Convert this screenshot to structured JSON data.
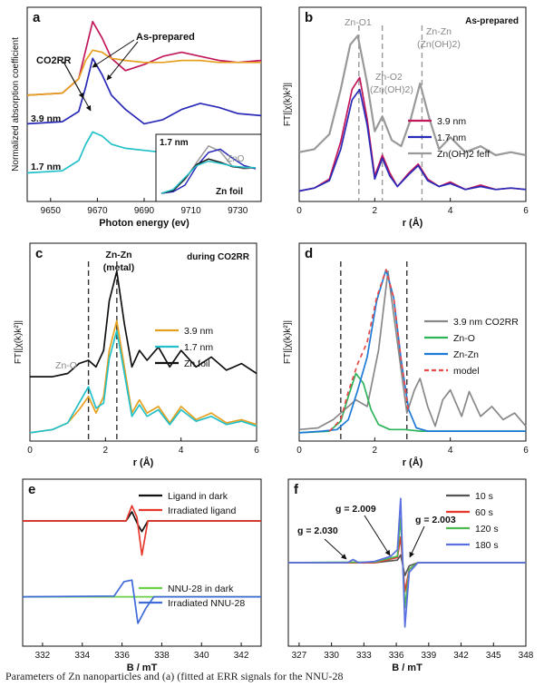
{
  "header_text": "",
  "caption": "Parameters of Zn nanoparticles and (a) (fitted at ERR signals for the NNU-28",
  "chart_data": [
    {
      "panel": "a",
      "type": "line",
      "xlabel": "Photon energy (ev)",
      "ylabel": "Normalized absorption coefficient",
      "xlim": [
        9640,
        9740
      ],
      "xticks": [
        "9650",
        "9670",
        "9690",
        "9710",
        "9730"
      ],
      "annotations": [
        "As-prepared",
        "CO2RR",
        "3.9 nm",
        "1.7 nm"
      ],
      "series": [
        {
          "color": "#c2185b",
          "x": [
            9640,
            9655,
            9662,
            9665,
            9668,
            9672,
            9676,
            9682,
            9690,
            9698,
            9706,
            9714,
            9722,
            9730,
            9740
          ],
          "y": [
            0.62,
            0.63,
            0.7,
            0.84,
            0.98,
            0.9,
            0.8,
            0.74,
            0.77,
            0.81,
            0.83,
            0.81,
            0.79,
            0.78,
            0.79
          ]
        },
        {
          "color": "#e6a020",
          "x": [
            9640,
            9655,
            9662,
            9665,
            9668,
            9672,
            9676,
            9682,
            9690,
            9698,
            9706,
            9714,
            9722,
            9730,
            9740
          ],
          "y": [
            0.62,
            0.63,
            0.7,
            0.79,
            0.84,
            0.83,
            0.8,
            0.79,
            0.78,
            0.78,
            0.79,
            0.79,
            0.78,
            0.78,
            0.78
          ]
        },
        {
          "color": "#2a2ab8",
          "x": [
            9640,
            9655,
            9662,
            9665,
            9668,
            9672,
            9676,
            9682,
            9690,
            9698,
            9706,
            9714,
            9722,
            9730,
            9740
          ],
          "y": [
            0.48,
            0.49,
            0.54,
            0.66,
            0.8,
            0.72,
            0.62,
            0.55,
            0.48,
            0.5,
            0.55,
            0.58,
            0.56,
            0.53,
            0.52
          ]
        },
        {
          "color": "#22c0c8",
          "x": [
            9640,
            9655,
            9662,
            9665,
            9668,
            9672,
            9676,
            9682,
            9690,
            9698,
            9706,
            9714,
            9722,
            9730,
            9740
          ],
          "y": [
            0.24,
            0.25,
            0.3,
            0.38,
            0.44,
            0.42,
            0.38,
            0.36,
            0.35,
            0.34,
            0.34,
            0.35,
            0.35,
            0.34,
            0.34
          ]
        }
      ],
      "inset": {
        "labels": [
          "1.7 nm",
          "ZnO",
          "Zn foil"
        ],
        "series": [
          {
            "color": "#999999",
            "values": [
              0.05,
              0.1,
              0.3,
              0.62,
              0.92,
              0.82,
              0.55,
              0.5,
              0.52
            ]
          },
          {
            "color": "#2a2ab8",
            "values": [
              0.05,
              0.08,
              0.2,
              0.55,
              0.8,
              0.86,
              0.7,
              0.56,
              0.5
            ]
          },
          {
            "color": "#111111",
            "values": [
              0.05,
              0.1,
              0.32,
              0.58,
              0.68,
              0.62,
              0.54,
              0.52,
              0.52
            ]
          },
          {
            "color": "#22c0c8",
            "values": [
              0.05,
              0.12,
              0.34,
              0.56,
              0.64,
              0.6,
              0.55,
              0.53,
              0.52
            ]
          }
        ]
      }
    },
    {
      "panel": "b",
      "type": "line",
      "xlabel": "r (Å)",
      "ylabel": "FT|[χ(k)k²]|",
      "xlim": [
        0,
        6
      ],
      "xticks": [
        "0",
        "2",
        "4",
        "6"
      ],
      "title": "As-prepared",
      "annotations": [
        "Zn-O1",
        "Zn-O2",
        "(Zn(OH)2)",
        "Zn-Zn",
        "(Zn(OH)2)"
      ],
      "vlines": [
        1.58,
        2.2,
        3.25
      ],
      "legend": [
        "3.9 nm",
        "1.7 nm",
        "Zn(OH)2 feff"
      ],
      "series": [
        {
          "name": "3.9 nm",
          "color": "#c2185b",
          "x": [
            0,
            0.4,
            0.8,
            1.1,
            1.4,
            1.6,
            1.8,
            2.0,
            2.2,
            2.4,
            2.6,
            2.9,
            3.15,
            3.4,
            3.7,
            4,
            4.4,
            4.8,
            5.2,
            5.6,
            6
          ],
          "y": [
            0.02,
            0.04,
            0.1,
            0.35,
            0.7,
            0.78,
            0.5,
            0.12,
            0.26,
            0.14,
            0.05,
            0.14,
            0.2,
            0.1,
            0.05,
            0.08,
            0.03,
            0.06,
            0.03,
            0.04,
            0.03
          ]
        },
        {
          "name": "1.7 nm",
          "color": "#2a2ab8",
          "x": [
            0,
            0.4,
            0.8,
            1.1,
            1.4,
            1.6,
            1.8,
            2.0,
            2.2,
            2.4,
            2.6,
            2.9,
            3.15,
            3.4,
            3.7,
            4,
            4.4,
            4.8,
            5.2,
            5.6,
            6
          ],
          "y": [
            0.02,
            0.04,
            0.09,
            0.3,
            0.63,
            0.7,
            0.46,
            0.1,
            0.24,
            0.12,
            0.05,
            0.13,
            0.19,
            0.09,
            0.05,
            0.07,
            0.03,
            0.05,
            0.03,
            0.04,
            0.03
          ]
        },
        {
          "name": "Zn(OH)2 feff",
          "color": "#999999",
          "x": [
            0,
            0.4,
            0.8,
            1.1,
            1.35,
            1.55,
            1.8,
            2.0,
            2.2,
            2.45,
            2.7,
            2.95,
            3.2,
            3.45,
            3.7,
            4,
            4.4,
            4.8,
            5.2,
            5.6,
            6
          ],
          "y": [
            0.28,
            0.3,
            0.4,
            0.7,
            1.0,
            1.06,
            0.74,
            0.42,
            0.52,
            0.36,
            0.32,
            0.5,
            0.74,
            0.5,
            0.3,
            0.38,
            0.28,
            0.32,
            0.26,
            0.28,
            0.26
          ]
        }
      ]
    },
    {
      "panel": "c",
      "type": "line",
      "xlabel": "r (Å)",
      "ylabel": "FT|[χ(k)k²]|",
      "xlim": [
        0,
        6
      ],
      "xticks": [
        "0",
        "2",
        "4",
        "6"
      ],
      "title": "during CO2RR",
      "annotations": [
        "Zn-Zn",
        "(metal)",
        "Zn-O"
      ],
      "vlines": [
        1.55,
        2.3
      ],
      "legend": [
        "3.9 nm",
        "1.7 nm",
        "Zn foil"
      ],
      "series": [
        {
          "name": "3.9 nm",
          "color": "#e6a020",
          "x": [
            0,
            0.6,
            1.0,
            1.3,
            1.55,
            1.75,
            1.95,
            2.1,
            2.3,
            2.5,
            2.7,
            2.9,
            3.1,
            3.4,
            3.7,
            4.0,
            4.4,
            4.8,
            5.2,
            5.6,
            6
          ],
          "y": [
            0.0,
            0.02,
            0.06,
            0.14,
            0.22,
            0.12,
            0.22,
            0.5,
            0.68,
            0.4,
            0.12,
            0.2,
            0.12,
            0.16,
            0.06,
            0.16,
            0.08,
            0.12,
            0.06,
            0.08,
            0.05
          ]
        },
        {
          "name": "1.7 nm",
          "color": "#22c0c8",
          "x": [
            0,
            0.6,
            1.0,
            1.3,
            1.55,
            1.75,
            1.95,
            2.1,
            2.3,
            2.5,
            2.7,
            2.9,
            3.1,
            3.4,
            3.7,
            4.0,
            4.4,
            4.8,
            5.2,
            5.6,
            6
          ],
          "y": [
            0.0,
            0.02,
            0.06,
            0.18,
            0.28,
            0.15,
            0.18,
            0.45,
            0.62,
            0.36,
            0.1,
            0.17,
            0.1,
            0.14,
            0.05,
            0.14,
            0.07,
            0.1,
            0.05,
            0.07,
            0.04
          ]
        },
        {
          "name": "Zn foil",
          "color": "#111111",
          "x": [
            0,
            0.6,
            1.0,
            1.3,
            1.55,
            1.75,
            1.95,
            2.1,
            2.3,
            2.5,
            2.7,
            2.9,
            3.1,
            3.4,
            3.7,
            4.0,
            4.4,
            4.8,
            5.2,
            5.6,
            6
          ],
          "y": [
            0.34,
            0.34,
            0.36,
            0.42,
            0.44,
            0.4,
            0.5,
            0.8,
            0.98,
            0.66,
            0.4,
            0.5,
            0.44,
            0.52,
            0.4,
            0.5,
            0.4,
            0.46,
            0.38,
            0.42,
            0.36
          ]
        }
      ]
    },
    {
      "panel": "d",
      "type": "line",
      "xlabel": "r (Å)",
      "ylabel": "FT|[χ(k)k²]|",
      "xlim": [
        0,
        6
      ],
      "xticks": [
        "0",
        "2",
        "4",
        "6"
      ],
      "vlines": [
        1.1,
        2.85
      ],
      "legend": [
        "3.9 nm CO2RR",
        "Zn-O",
        "Zn-Zn",
        "model"
      ],
      "series": [
        {
          "name": "3.9 nm CO2RR",
          "color": "#888888",
          "x": [
            0,
            0.5,
            0.9,
            1.2,
            1.5,
            1.8,
            2.1,
            2.35,
            2.6,
            2.85,
            3.05,
            3.2,
            3.4,
            3.6,
            3.8,
            4.0,
            4.3,
            4.5,
            4.8,
            5.1,
            5.4,
            5.7,
            6
          ],
          "y": [
            0.02,
            0.03,
            0.08,
            0.14,
            0.2,
            0.16,
            0.5,
            0.98,
            0.55,
            0.12,
            0.26,
            0.33,
            0.16,
            0.04,
            0.2,
            0.26,
            0.1,
            0.25,
            0.1,
            0.16,
            0.08,
            0.12,
            0.04
          ]
        },
        {
          "name": "Zn-O",
          "color": "#2db35a",
          "x": [
            0,
            0.8,
            1.1,
            1.3,
            1.5,
            1.7,
            1.9,
            2.1,
            2.4,
            2.8,
            3.2,
            6
          ],
          "y": [
            0,
            0.01,
            0.07,
            0.22,
            0.36,
            0.3,
            0.14,
            0.05,
            0.02,
            0.02,
            0.01,
            0.01
          ]
        },
        {
          "name": "Zn-Zn",
          "color": "#1f7ad6",
          "x": [
            0,
            0.6,
            1.0,
            1.3,
            1.55,
            1.8,
            2.05,
            2.3,
            2.5,
            2.7,
            2.9,
            3.1,
            3.4,
            6
          ],
          "y": [
            0,
            0.01,
            0.02,
            0.08,
            0.26,
            0.46,
            0.8,
            0.99,
            0.82,
            0.44,
            0.14,
            0.03,
            0.01,
            0.01
          ]
        },
        {
          "name": "model",
          "color": "#e84a4a",
          "x": [
            0.8,
            1.1,
            1.3,
            1.55,
            1.8,
            2.05,
            2.3,
            2.5,
            2.7,
            2.9
          ],
          "y": [
            0.01,
            0.08,
            0.25,
            0.42,
            0.55,
            0.82,
            0.99,
            0.82,
            0.44,
            0.12
          ]
        }
      ]
    },
    {
      "panel": "e",
      "type": "line",
      "xlabel": "B / mT",
      "xlim": [
        331,
        343
      ],
      "xticks": [
        "332",
        "334",
        "336",
        "338",
        "340",
        "342"
      ],
      "legend": [
        "Ligand in dark",
        "Irradiated ligand",
        "NNU-28 in dark",
        "Irradiated NNU-28"
      ],
      "series": [
        {
          "name": "Ligand in dark",
          "color": "#111111",
          "x": [
            331,
            336.2,
            336.5,
            336.8,
            337.0,
            337.3,
            343
          ],
          "y": [
            0,
            0,
            0.12,
            -0.05,
            -0.14,
            0,
            0
          ]
        },
        {
          "name": "Irradiated ligand",
          "color": "#e8382e",
          "x": [
            331,
            336.2,
            336.5,
            336.75,
            337.0,
            337.3,
            343
          ],
          "y": [
            0,
            0,
            0.2,
            0.05,
            -0.45,
            0,
            0
          ]
        },
        {
          "name": "NNU-28 in dark",
          "color": "#6ccf44",
          "x": [
            331,
            343
          ],
          "y": [
            0,
            0
          ]
        },
        {
          "name": "Irradiated NNU-28",
          "color": "#3f6ad8",
          "x": [
            331,
            335.6,
            336.1,
            336.5,
            336.8,
            337.2,
            337.6,
            343
          ],
          "y": [
            0,
            0.01,
            0.2,
            0.22,
            -0.35,
            -0.15,
            0,
            0
          ]
        }
      ]
    },
    {
      "panel": "f",
      "type": "line",
      "xlabel": "B / mT",
      "xlim": [
        326,
        348
      ],
      "xticks": [
        "327",
        "330",
        "333",
        "336",
        "339",
        "342",
        "345",
        "348"
      ],
      "annotations": [
        "g = 2.030",
        "g = 2.009",
        "g = 2.003"
      ],
      "legend": [
        "10 s",
        "60 s",
        "120 s",
        "180 s"
      ],
      "series": [
        {
          "name": "10 s",
          "color": "#555555",
          "x": [
            326,
            334,
            336.1,
            336.4,
            336.8,
            337.2,
            338,
            348
          ],
          "y": [
            0,
            0,
            0.04,
            0.12,
            -0.2,
            -0.05,
            0,
            0
          ]
        },
        {
          "name": "60 s",
          "color": "#e8382e",
          "x": [
            326,
            334,
            336.1,
            336.4,
            336.8,
            337.2,
            338,
            348
          ],
          "y": [
            0,
            0,
            0.08,
            0.4,
            -0.45,
            -0.1,
            0,
            0
          ]
        },
        {
          "name": "120 s",
          "color": "#4fb84f",
          "x": [
            326,
            334,
            336.1,
            336.4,
            336.8,
            337.2,
            338,
            348
          ],
          "y": [
            0,
            0.01,
            0.1,
            0.7,
            -0.7,
            -0.1,
            0,
            0
          ]
        },
        {
          "name": "180 s",
          "color": "#5a6fe0",
          "x": [
            326,
            331.5,
            332,
            332.5,
            334,
            335.5,
            336.1,
            336.4,
            336.8,
            337.2,
            338,
            348
          ],
          "y": [
            0,
            0,
            0.05,
            0,
            0.02,
            0.1,
            0.2,
            1.0,
            -1.0,
            -0.15,
            0,
            0
          ]
        }
      ]
    }
  ]
}
